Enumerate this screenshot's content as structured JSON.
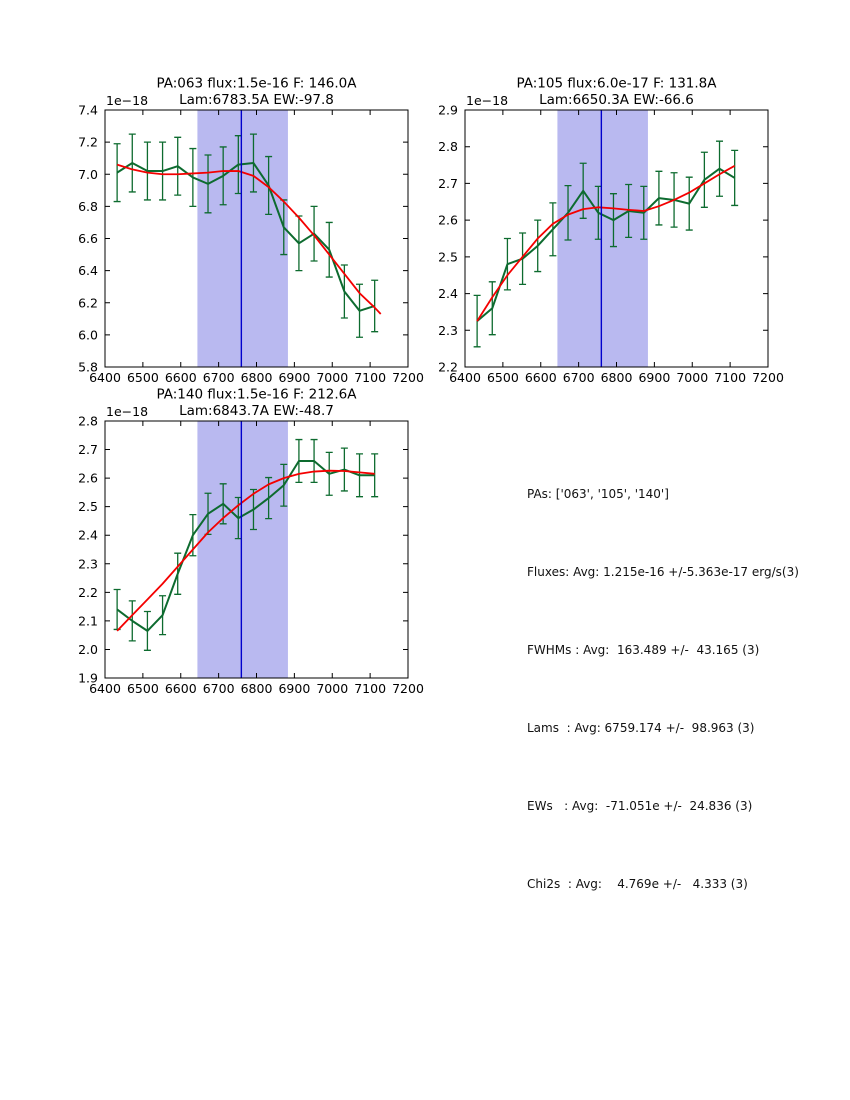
{
  "page": {
    "background": "#ffffff"
  },
  "colors": {
    "observed": "#0d6b2f",
    "fit": "#f40000",
    "center_line": "#0000cc",
    "band": "#b9b9f0",
    "axis": "#000000",
    "text": "#000000"
  },
  "stats_panel": {
    "lines": [
      "PAs: ['063', '105', '140']",
      "Fluxes: Avg: 1.215e-16 +/-5.363e-17 erg/s(3)",
      "FWHMs : Avg:  163.489 +/-  43.165 (3)",
      "Lams  : Avg: 6759.174 +/-  98.963 (3)",
      "EWs   : Avg:  -71.051e +/-  24.836 (3)",
      "Chi2s  : Avg:    4.769e +/-   4.333 (3)"
    ]
  },
  "chart_data": [
    {
      "type": "line",
      "id": "pa063",
      "title": "PA:063 flux:1.5e-16 F: 146.0A",
      "subtitle": "Lam:6783.5A EW:-97.8",
      "y_offset_label": "1e−18",
      "xlim": [
        6400,
        7200
      ],
      "ylim": [
        5.8,
        7.4
      ],
      "xticks": [
        6400,
        6500,
        6600,
        6700,
        6800,
        6900,
        7000,
        7100,
        7200
      ],
      "yticks": [
        5.8,
        6.0,
        6.2,
        6.4,
        6.6,
        6.8,
        7.0,
        7.2,
        7.4
      ],
      "grid": false,
      "legend": null,
      "band": [
        6644,
        6883
      ],
      "vline": 6760,
      "x": [
        6432,
        6472,
        6512,
        6552,
        6592,
        6632,
        6672,
        6712,
        6752,
        6792,
        6832,
        6872,
        6912,
        6952,
        6992,
        7032,
        7072,
        7112
      ],
      "series": [
        {
          "name": "observed",
          "color": "#0d6b2f",
          "values": [
            7.01,
            7.07,
            7.02,
            7.02,
            7.05,
            6.98,
            6.94,
            6.99,
            7.06,
            7.07,
            6.93,
            6.67,
            6.57,
            6.63,
            6.53,
            6.27,
            6.15,
            6.18
          ],
          "yerr": [
            0.18,
            0.18,
            0.18,
            0.18,
            0.18,
            0.18,
            0.18,
            0.18,
            0.18,
            0.18,
            0.18,
            0.17,
            0.17,
            0.17,
            0.17,
            0.165,
            0.165,
            0.16
          ]
        },
        {
          "name": "fit",
          "color": "#f40000",
          "x": [
            6432,
            6472,
            6512,
            6552,
            6592,
            6632,
            6672,
            6712,
            6752,
            6792,
            6832,
            6872,
            6912,
            6952,
            6992,
            7032,
            7072,
            7112,
            7128
          ],
          "values": [
            7.06,
            7.03,
            7.01,
            7.0,
            7.0,
            7.005,
            7.01,
            7.02,
            7.02,
            6.99,
            6.92,
            6.83,
            6.73,
            6.62,
            6.5,
            6.38,
            6.26,
            6.17,
            6.13
          ]
        }
      ]
    },
    {
      "type": "line",
      "id": "pa105",
      "title": "PA:105 flux:6.0e-17 F: 131.8A",
      "subtitle": "Lam:6650.3A EW:-66.6",
      "y_offset_label": "1e−18",
      "xlim": [
        6400,
        7200
      ],
      "ylim": [
        2.2,
        2.9
      ],
      "xticks": [
        6400,
        6500,
        6600,
        6700,
        6800,
        6900,
        7000,
        7100,
        7200
      ],
      "yticks": [
        2.2,
        2.3,
        2.4,
        2.5,
        2.6,
        2.7,
        2.8,
        2.9
      ],
      "grid": false,
      "legend": null,
      "band": [
        6644,
        6883
      ],
      "vline": 6760,
      "x": [
        6432,
        6472,
        6512,
        6552,
        6592,
        6632,
        6672,
        6712,
        6752,
        6792,
        6832,
        6872,
        6912,
        6952,
        6992,
        7032,
        7072,
        7112
      ],
      "series": [
        {
          "name": "observed",
          "color": "#0d6b2f",
          "values": [
            2.325,
            2.36,
            2.48,
            2.495,
            2.53,
            2.575,
            2.62,
            2.68,
            2.62,
            2.6,
            2.625,
            2.62,
            2.66,
            2.655,
            2.645,
            2.71,
            2.74,
            2.715
          ],
          "yerr": [
            0.07,
            0.072,
            0.07,
            0.07,
            0.07,
            0.072,
            0.074,
            0.075,
            0.072,
            0.072,
            0.072,
            0.072,
            0.073,
            0.074,
            0.072,
            0.075,
            0.075,
            0.075
          ]
        },
        {
          "name": "fit",
          "color": "#f40000",
          "x": [
            6432,
            6472,
            6512,
            6552,
            6592,
            6632,
            6672,
            6712,
            6752,
            6792,
            6832,
            6872,
            6912,
            6952,
            6992,
            7032,
            7072,
            7112
          ],
          "values": [
            2.325,
            2.39,
            2.45,
            2.5,
            2.55,
            2.59,
            2.615,
            2.63,
            2.635,
            2.632,
            2.628,
            2.625,
            2.638,
            2.655,
            2.675,
            2.7,
            2.725,
            2.748
          ]
        }
      ]
    },
    {
      "type": "line",
      "id": "pa140",
      "title": "PA:140 flux:1.5e-16 F: 212.6A",
      "subtitle": "Lam:6843.7A EW:-48.7",
      "y_offset_label": "1e−18",
      "xlim": [
        6400,
        7200
      ],
      "ylim": [
        1.9,
        2.8
      ],
      "xticks": [
        6400,
        6500,
        6600,
        6700,
        6800,
        6900,
        7000,
        7100,
        7200
      ],
      "yticks": [
        1.9,
        2.0,
        2.1,
        2.2,
        2.3,
        2.4,
        2.5,
        2.6,
        2.7,
        2.8
      ],
      "grid": false,
      "legend": null,
      "band": [
        6644,
        6883
      ],
      "vline": 6760,
      "x": [
        6432,
        6472,
        6512,
        6552,
        6592,
        6632,
        6672,
        6712,
        6752,
        6792,
        6832,
        6872,
        6912,
        6952,
        6992,
        7032,
        7072,
        7112
      ],
      "series": [
        {
          "name": "observed",
          "color": "#0d6b2f",
          "values": [
            2.14,
            2.1,
            2.065,
            2.12,
            2.265,
            2.4,
            2.475,
            2.51,
            2.46,
            2.49,
            2.53,
            2.575,
            2.66,
            2.66,
            2.615,
            2.63,
            2.61,
            2.61
          ],
          "yerr": [
            0.07,
            0.07,
            0.068,
            0.068,
            0.072,
            0.072,
            0.072,
            0.07,
            0.072,
            0.07,
            0.072,
            0.073,
            0.075,
            0.075,
            0.075,
            0.075,
            0.075,
            0.075
          ]
        },
        {
          "name": "fit",
          "color": "#f40000",
          "x": [
            6432,
            6472,
            6512,
            6552,
            6592,
            6632,
            6672,
            6712,
            6752,
            6792,
            6832,
            6872,
            6912,
            6952,
            6992,
            7032,
            7072,
            7112
          ],
          "values": [
            2.065,
            2.12,
            2.175,
            2.23,
            2.29,
            2.35,
            2.41,
            2.46,
            2.505,
            2.545,
            2.578,
            2.6,
            2.615,
            2.623,
            2.626,
            2.625,
            2.62,
            2.615
          ]
        }
      ]
    }
  ]
}
